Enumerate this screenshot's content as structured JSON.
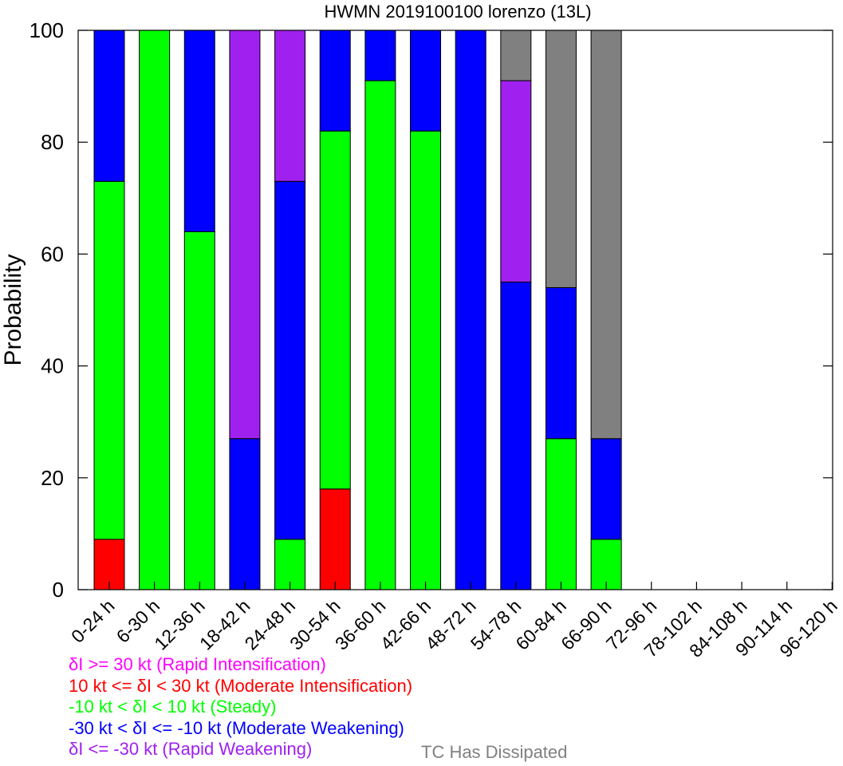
{
  "chart_data": {
    "type": "bar",
    "stacked": true,
    "title": "HWMN 2019100100 lorenzo (13L)",
    "ylabel": "Probability",
    "xlabel": "",
    "ylim": [
      0,
      100
    ],
    "yticks": [
      0,
      20,
      40,
      60,
      80,
      100
    ],
    "categories": [
      "0-24 h",
      "6-30 h",
      "12-36 h",
      "18-42 h",
      "24-48 h",
      "30-54 h",
      "36-60 h",
      "42-66 h",
      "48-72 h",
      "54-78 h",
      "60-84 h",
      "66-90 h",
      "72-96 h",
      "78-102 h",
      "84-108 h",
      "90-114 h",
      "96-120 h"
    ],
    "series": [
      {
        "name": "10 kt <= δI < 30 kt (Moderate Intensification)",
        "color": "#ff0000",
        "values": [
          9,
          0,
          0,
          0,
          0,
          18,
          0,
          0,
          0,
          0,
          0,
          0,
          0,
          0,
          0,
          0,
          0
        ]
      },
      {
        "name": "-10 kt < δI < 10 kt (Steady)",
        "color": "#00ff00",
        "values": [
          64,
          100,
          64,
          0,
          9,
          64,
          91,
          82,
          0,
          0,
          27,
          9,
          0,
          0,
          0,
          0,
          0
        ]
      },
      {
        "name": "-30 kt < δI <= -10 kt (Moderate Weakening)",
        "color": "#0000ff",
        "values": [
          27,
          0,
          36,
          27,
          64,
          18,
          9,
          18,
          100,
          55,
          27,
          18,
          0,
          0,
          0,
          0,
          0
        ]
      },
      {
        "name": "δI <= -30 kt (Rapid Weakening)",
        "color": "#a020f0",
        "values": [
          0,
          0,
          0,
          73,
          27,
          0,
          0,
          0,
          0,
          36,
          0,
          0,
          0,
          0,
          0,
          0,
          0
        ]
      },
      {
        "name": "δI >= 30 kt (Rapid Intensification)",
        "color": "#ff00ff",
        "values": [
          0,
          0,
          0,
          0,
          0,
          0,
          0,
          0,
          0,
          0,
          0,
          0,
          0,
          0,
          0,
          0,
          0
        ]
      },
      {
        "name": "TC Has Dissipated",
        "color": "#808080",
        "values": [
          0,
          0,
          0,
          0,
          0,
          0,
          0,
          0,
          0,
          9,
          46,
          73,
          0,
          0,
          0,
          0,
          0
        ]
      }
    ],
    "legend": [
      {
        "text": "δI >= 30 kt (Rapid Intensification)",
        "color": "#ff00ff"
      },
      {
        "text": "10 kt <= δI < 30 kt (Moderate Intensification)",
        "color": "#ff0000"
      },
      {
        "text": "-10 kt < δI < 10 kt (Steady)",
        "color": "#00ff00"
      },
      {
        "text": "-30 kt < δI <= -10 kt (Moderate Weakening)",
        "color": "#0000ff"
      },
      {
        "text": "δI <= -30 kt (Rapid Weakening)",
        "color": "#a020f0"
      }
    ],
    "dissipated_label": {
      "text": "TC Has Dissipated",
      "color": "#808080"
    },
    "legend_placement": "bottom-left",
    "grid": false
  }
}
